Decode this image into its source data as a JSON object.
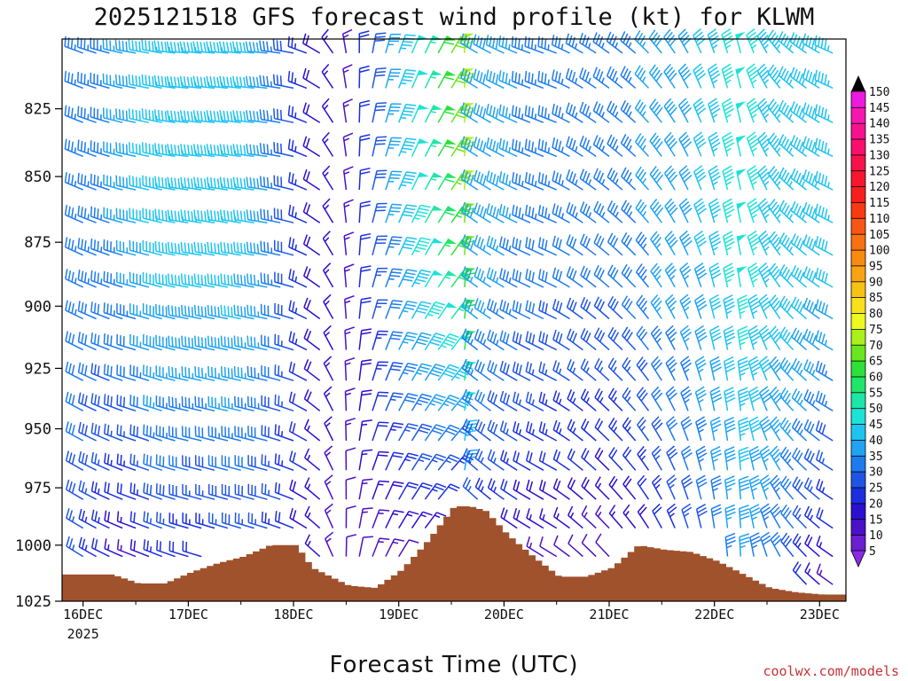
{
  "chart_data": {
    "type": "wind-barb time-height profile",
    "title": "2025121518 GFS forecast wind profile (kt) for KLWM",
    "xlabel": "Forecast Time (UTC)",
    "ylabel": "",
    "credit": "coolwx.com/models",
    "x_ticks": [
      "16DEC",
      "17DEC",
      "18DEC",
      "19DEC",
      "20DEC",
      "21DEC",
      "22DEC",
      "23DEC"
    ],
    "x_tick_sub": "2025",
    "x_range_days": [
      -0.2,
      7.25
    ],
    "y_ticks": [
      825,
      850,
      875,
      900,
      925,
      950,
      975,
      1000,
      1025
    ],
    "y_range_mb": [
      800,
      1025
    ],
    "colorbar": {
      "levels": [
        5,
        10,
        15,
        20,
        25,
        30,
        35,
        40,
        45,
        50,
        55,
        60,
        65,
        70,
        75,
        80,
        85,
        90,
        95,
        100,
        105,
        110,
        115,
        120,
        125,
        130,
        135,
        140,
        145,
        150
      ],
      "colors": [
        "#8a2be2",
        "#6a1fd0",
        "#4b10c8",
        "#2d0fd0",
        "#1c2fe0",
        "#1f55e6",
        "#1e7bee",
        "#1fa3f2",
        "#1ec4f0",
        "#1de2d8",
        "#1ee6a8",
        "#20e66a",
        "#2ee03a",
        "#6ae61e",
        "#aaf01c",
        "#ecf81e",
        "#f8e01a",
        "#f8c214",
        "#f8a412",
        "#f88a10",
        "#f87012",
        "#f85614",
        "#f83a12",
        "#f81e1e",
        "#f8162e",
        "#f8124c",
        "#f8106c",
        "#f8128e",
        "#f616b0",
        "#ee1ae0"
      ]
    },
    "surface_pressure_mb": {
      "times_days": [
        -0.2,
        0.25,
        0.5,
        0.75,
        1.0,
        1.25,
        1.5,
        1.75,
        2.0,
        2.15,
        2.5,
        2.75,
        3.0,
        3.25,
        3.5,
        3.65,
        3.8,
        4.0,
        4.25,
        4.5,
        4.75,
        5.0,
        5.25,
        5.5,
        5.75,
        6.0,
        6.25,
        6.5,
        6.75,
        7.0,
        7.25
      ],
      "values": [
        1013,
        1013,
        1017,
        1017,
        1012,
        1008,
        1005,
        1000,
        1000,
        1010,
        1018,
        1019,
        1011,
        998,
        983,
        983,
        985,
        995,
        1005,
        1014,
        1014,
        1010,
        1000,
        1002,
        1003,
        1007,
        1013,
        1019,
        1021,
        1022,
        1022
      ]
    },
    "barb_columns_sampled": [
      {
        "t": 0.0,
        "dir": 290,
        "spd": 35,
        "sfc_spd": 25
      },
      {
        "t": 0.25,
        "dir": 285,
        "spd": 35,
        "sfc_spd": 20
      },
      {
        "t": 0.5,
        "dir": 280,
        "spd": 40,
        "sfc_spd": 10
      },
      {
        "t": 0.75,
        "dir": 280,
        "spd": 45,
        "sfc_spd": 20
      },
      {
        "t": 1.0,
        "dir": 275,
        "spd": 45,
        "sfc_spd": 20
      },
      {
        "t": 1.25,
        "dir": 275,
        "spd": 45,
        "sfc_spd": 20
      },
      {
        "t": 1.5,
        "dir": 275,
        "spd": 45,
        "sfc_spd": 25
      },
      {
        "t": 1.75,
        "dir": 275,
        "spd": 40,
        "sfc_spd": 25
      },
      {
        "t": 2.0,
        "dir": 280,
        "spd": 30,
        "sfc_spd": 20
      },
      {
        "t": 2.25,
        "dir": 300,
        "spd": 20,
        "sfc_spd": 15
      },
      {
        "t": 2.5,
        "dir": 350,
        "spd": 15,
        "sfc_spd": 10
      },
      {
        "t": 2.75,
        "dir": 10,
        "spd": 30,
        "sfc_spd": 10
      },
      {
        "t": 3.0,
        "dir": 20,
        "spd": 45,
        "sfc_spd": 10
      },
      {
        "t": 3.25,
        "dir": 25,
        "spd": 55,
        "sfc_spd": 15
      },
      {
        "t": 3.5,
        "dir": 30,
        "spd": 70,
        "sfc_spd": 15
      },
      {
        "t": 3.6,
        "dir": 10,
        "spd": 80,
        "sfc_spd": 30
      },
      {
        "t": 3.75,
        "dir": 300,
        "spd": 40,
        "sfc_spd": 25
      },
      {
        "t": 4.0,
        "dir": 295,
        "spd": 40,
        "sfc_spd": 20
      },
      {
        "t": 4.25,
        "dir": 290,
        "spd": 35,
        "sfc_spd": 15
      },
      {
        "t": 4.5,
        "dir": 290,
        "spd": 35,
        "sfc_spd": 10
      },
      {
        "t": 4.75,
        "dir": 300,
        "spd": 35,
        "sfc_spd": 10
      },
      {
        "t": 5.0,
        "dir": 305,
        "spd": 35,
        "sfc_spd": 10
      },
      {
        "t": 5.25,
        "dir": 310,
        "spd": 35,
        "sfc_spd": 15
      },
      {
        "t": 5.5,
        "dir": 320,
        "spd": 40,
        "sfc_spd": 20
      },
      {
        "t": 5.75,
        "dir": 330,
        "spd": 40,
        "sfc_spd": 25
      },
      {
        "t": 6.0,
        "dir": 340,
        "spd": 45,
        "sfc_spd": 30
      },
      {
        "t": 6.25,
        "dir": 345,
        "spd": 50,
        "sfc_spd": 35
      },
      {
        "t": 6.5,
        "dir": 330,
        "spd": 45,
        "sfc_spd": 30
      },
      {
        "t": 6.75,
        "dir": 310,
        "spd": 45,
        "sfc_spd": 25
      },
      {
        "t": 7.0,
        "dir": 300,
        "spd": 45,
        "sfc_spd": 15
      },
      {
        "t": 7.2,
        "dir": 290,
        "spd": 45,
        "sfc_spd": 10
      }
    ]
  }
}
